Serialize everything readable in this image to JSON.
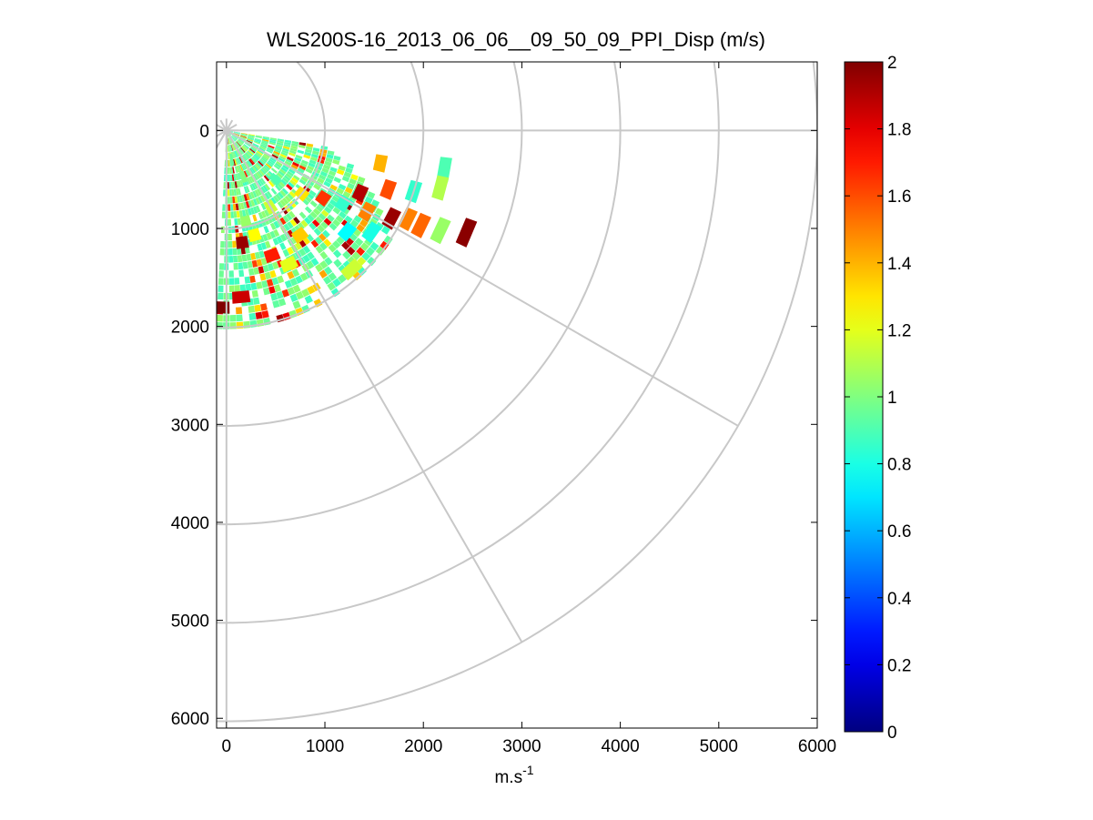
{
  "chart_data": {
    "type": "heatmap",
    "title": "WLS200S-16_2013_06_06__09_50_09_PPI_Disp (m/s)",
    "xlabel": "m.s",
    "xlabel_superscript": "-1",
    "ylabel": "",
    "x_axis": {
      "range": [
        -100,
        6000
      ],
      "ticks": [
        0,
        1000,
        2000,
        3000,
        4000,
        5000,
        6000
      ]
    },
    "y_axis": {
      "range": [
        -700,
        6100
      ],
      "reversed": true,
      "ticks": [
        0,
        1000,
        2000,
        3000,
        4000,
        5000,
        6000
      ]
    },
    "polar_grid": {
      "ring_radii": [
        1000,
        2000,
        3000,
        4000,
        5000,
        6000
      ],
      "spoke_angles_deg": [
        -90,
        -60,
        -30,
        0,
        30,
        60,
        90
      ]
    },
    "colorbar": {
      "colormap": "jet",
      "range": [
        0,
        2
      ],
      "ticks": [
        "0",
        "0.2",
        "0.4",
        "0.6",
        "0.8",
        "1",
        "1.2",
        "1.4",
        "1.6",
        "1.8",
        "2"
      ]
    },
    "scan_sector_deg": [
      -3,
      80
    ],
    "typical_value": 0.95,
    "cells": [
      {
        "r": 300,
        "a": 10,
        "v": 0.95
      },
      {
        "r": 500,
        "a": 20,
        "v": 1.0
      },
      {
        "r": 700,
        "a": 45,
        "v": 0.9
      },
      {
        "r": 900,
        "a": 30,
        "v": 1.15
      },
      {
        "r": 1100,
        "a": 15,
        "v": 1.25
      },
      {
        "r": 1300,
        "a": 35,
        "v": 1.35
      },
      {
        "r": 1500,
        "a": 25,
        "v": 1.2
      },
      {
        "r": 1700,
        "a": 5,
        "v": 1.85
      },
      {
        "r": 1800,
        "a": -2,
        "v": 2.0
      },
      {
        "r": 1600,
        "a": 50,
        "v": 0.75
      },
      {
        "r": 1900,
        "a": 42,
        "v": 1.15
      },
      {
        "r": 1800,
        "a": 55,
        "v": 0.8
      },
      {
        "r": 1650,
        "a": 60,
        "v": 1.5
      },
      {
        "r": 1900,
        "a": 62,
        "v": 1.95
      },
      {
        "r": 2050,
        "a": 64,
        "v": 1.5
      },
      {
        "r": 2200,
        "a": 64,
        "v": 1.55
      },
      {
        "r": 2400,
        "a": 65,
        "v": 1.05
      },
      {
        "r": 2650,
        "a": 67,
        "v": 1.98
      },
      {
        "r": 2250,
        "a": 80,
        "v": 0.9
      },
      {
        "r": 2250,
        "a": 75,
        "v": 1.1
      },
      {
        "r": 2000,
        "a": 72,
        "v": 0.85
      },
      {
        "r": 1750,
        "a": 70,
        "v": 1.6
      },
      {
        "r": 1600,
        "a": 78,
        "v": 1.4
      },
      {
        "r": 1500,
        "a": 65,
        "v": 1.9
      },
      {
        "r": 1400,
        "a": 58,
        "v": 0.85
      },
      {
        "r": 1200,
        "a": 55,
        "v": 1.65
      },
      {
        "r": 1000,
        "a": 50,
        "v": 1.3
      },
      {
        "r": 1150,
        "a": 8,
        "v": 1.95
      },
      {
        "r": 950,
        "a": 12,
        "v": 1.05
      },
      {
        "r": 1350,
        "a": 20,
        "v": 1.7
      }
    ]
  },
  "colors": {
    "grid": "#c8c8c8",
    "axes": "#000000",
    "background": "#ffffff"
  }
}
